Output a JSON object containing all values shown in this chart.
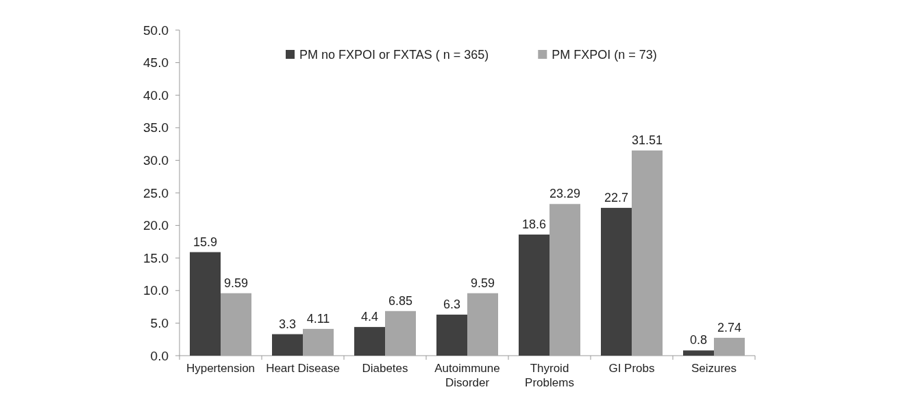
{
  "chart_data": {
    "type": "bar",
    "categories": [
      "Hypertension",
      "Heart Disease",
      "Diabetes",
      "Autoimmune Disorder",
      "Thyroid Problems",
      "GI Probs",
      "Seizures"
    ],
    "series": [
      {
        "name": "PM no FXPOI or FXTAS ( n = 365)",
        "color": "#404040",
        "values": [
          15.9,
          3.3,
          4.4,
          6.3,
          18.6,
          22.7,
          0.8
        ]
      },
      {
        "name": "PM FXPOI (n = 73)",
        "color": "#a6a6a6",
        "values": [
          9.59,
          4.11,
          6.85,
          9.59,
          23.29,
          31.51,
          2.74
        ]
      }
    ],
    "ylim": [
      0,
      50
    ],
    "yticks": [
      {
        "value": 0,
        "label": "0.0"
      },
      {
        "value": 5,
        "label": "5.0"
      },
      {
        "value": 10,
        "label": "10.0"
      },
      {
        "value": 15,
        "label": "15.0"
      },
      {
        "value": 20,
        "label": "20.0"
      },
      {
        "value": 25,
        "label": "25.0"
      },
      {
        "value": 30,
        "label": "30.0"
      },
      {
        "value": 35,
        "label": "35.0"
      },
      {
        "value": 40,
        "label": "40.0"
      },
      {
        "value": 45,
        "label": "45.0"
      },
      {
        "value": 50,
        "label": "50.0"
      }
    ],
    "data_labels": true,
    "legend": "top",
    "grid": false
  }
}
